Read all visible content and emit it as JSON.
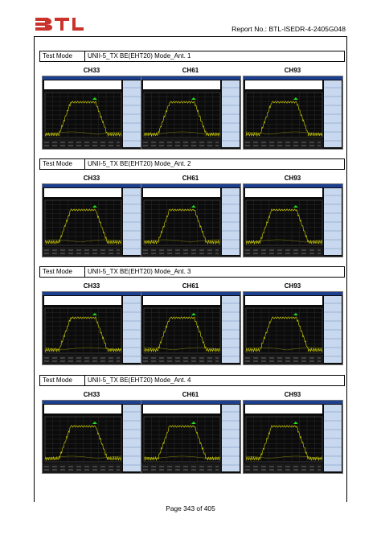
{
  "header": {
    "logo_text": "BTL",
    "report_no": "Report No.: BTL-ISEDR-4-2405G048"
  },
  "sections": [
    {
      "label": "Test Mode",
      "value": "UNII-5_TX BE(EHT20) Mode_Ant. 1",
      "channels": [
        "CH33",
        "CH61",
        "CH93"
      ]
    },
    {
      "label": "Test Mode",
      "value": "UNII-5_TX BE(EHT20) Mode_Ant. 2",
      "channels": [
        "CH33",
        "CH61",
        "CH93"
      ]
    },
    {
      "label": "Test Mode",
      "value": "UNII-5_TX BE(EHT20) Mode_Ant. 3",
      "channels": [
        "CH33",
        "CH61",
        "CH93"
      ]
    },
    {
      "label": "Test Mode",
      "value": "UNII-5_TX BE(EHT20) Mode_Ant. 4",
      "channels": [
        "CH33",
        "CH61",
        "CH93"
      ]
    }
  ],
  "footer": {
    "page": "Page 343 of 405"
  },
  "colors": {
    "trace": "#d8d800",
    "marker": "#22dd22",
    "screen_bg": "#0b0b0b",
    "title_bar": "#1c3f8f",
    "softkey": "#c8d8ee"
  }
}
